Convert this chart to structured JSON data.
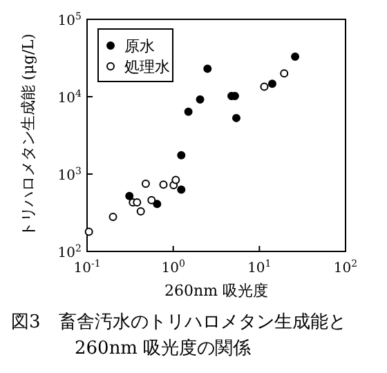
{
  "chart_data": {
    "type": "scatter",
    "xlabel": "260nm 吸光度",
    "ylabel": "トリハロメタン生成能 (μg/L)",
    "log": "xy",
    "xlim": [
      0.1,
      100
    ],
    "ylim": [
      100,
      100000
    ],
    "xticks": [
      {
        "value": 0.1,
        "label": "10$^{-1}$"
      },
      {
        "value": 1,
        "label": "10$^{0}$"
      },
      {
        "value": 10,
        "label": "10$^{1}$"
      },
      {
        "value": 100,
        "label": "10$^{2}$"
      }
    ],
    "yticks": [
      {
        "value": 100,
        "label": "10$^{2}$"
      },
      {
        "value": 1000,
        "label": "10$^{3}$"
      },
      {
        "value": 10000,
        "label": "10$^{4}$"
      },
      {
        "value": 100000,
        "label": "10$^{5}$"
      }
    ],
    "marker": "circle",
    "legend": "top left",
    "series": [
      {
        "name": "原水",
        "color": "#000000",
        "x": [
          2.5,
          2.05,
          1.5,
          4.75,
          5.2,
          5.4,
          14.1,
          26,
          1.24,
          1.24,
          0.31,
          0.65
        ],
        "values": [
          23000,
          9200,
          6400,
          10200,
          10200,
          5300,
          14700,
          33000,
          1750,
          630,
          520,
          410
        ]
      },
      {
        "name": "処理水",
        "color": "#ffffff",
        "x": [
          0.105,
          0.2,
          0.34,
          0.38,
          0.42,
          0.48,
          0.56,
          0.77,
          1.01,
          1.07,
          11.4,
          19.4
        ],
        "values": [
          180,
          280,
          430,
          430,
          330,
          750,
          460,
          730,
          720,
          840,
          13500,
          20000
        ]
      }
    ],
    "annotations": [
      "図3　畜舎汚水のトリハロメタン生成能と260nm 吸光度の関係"
    ]
  }
}
